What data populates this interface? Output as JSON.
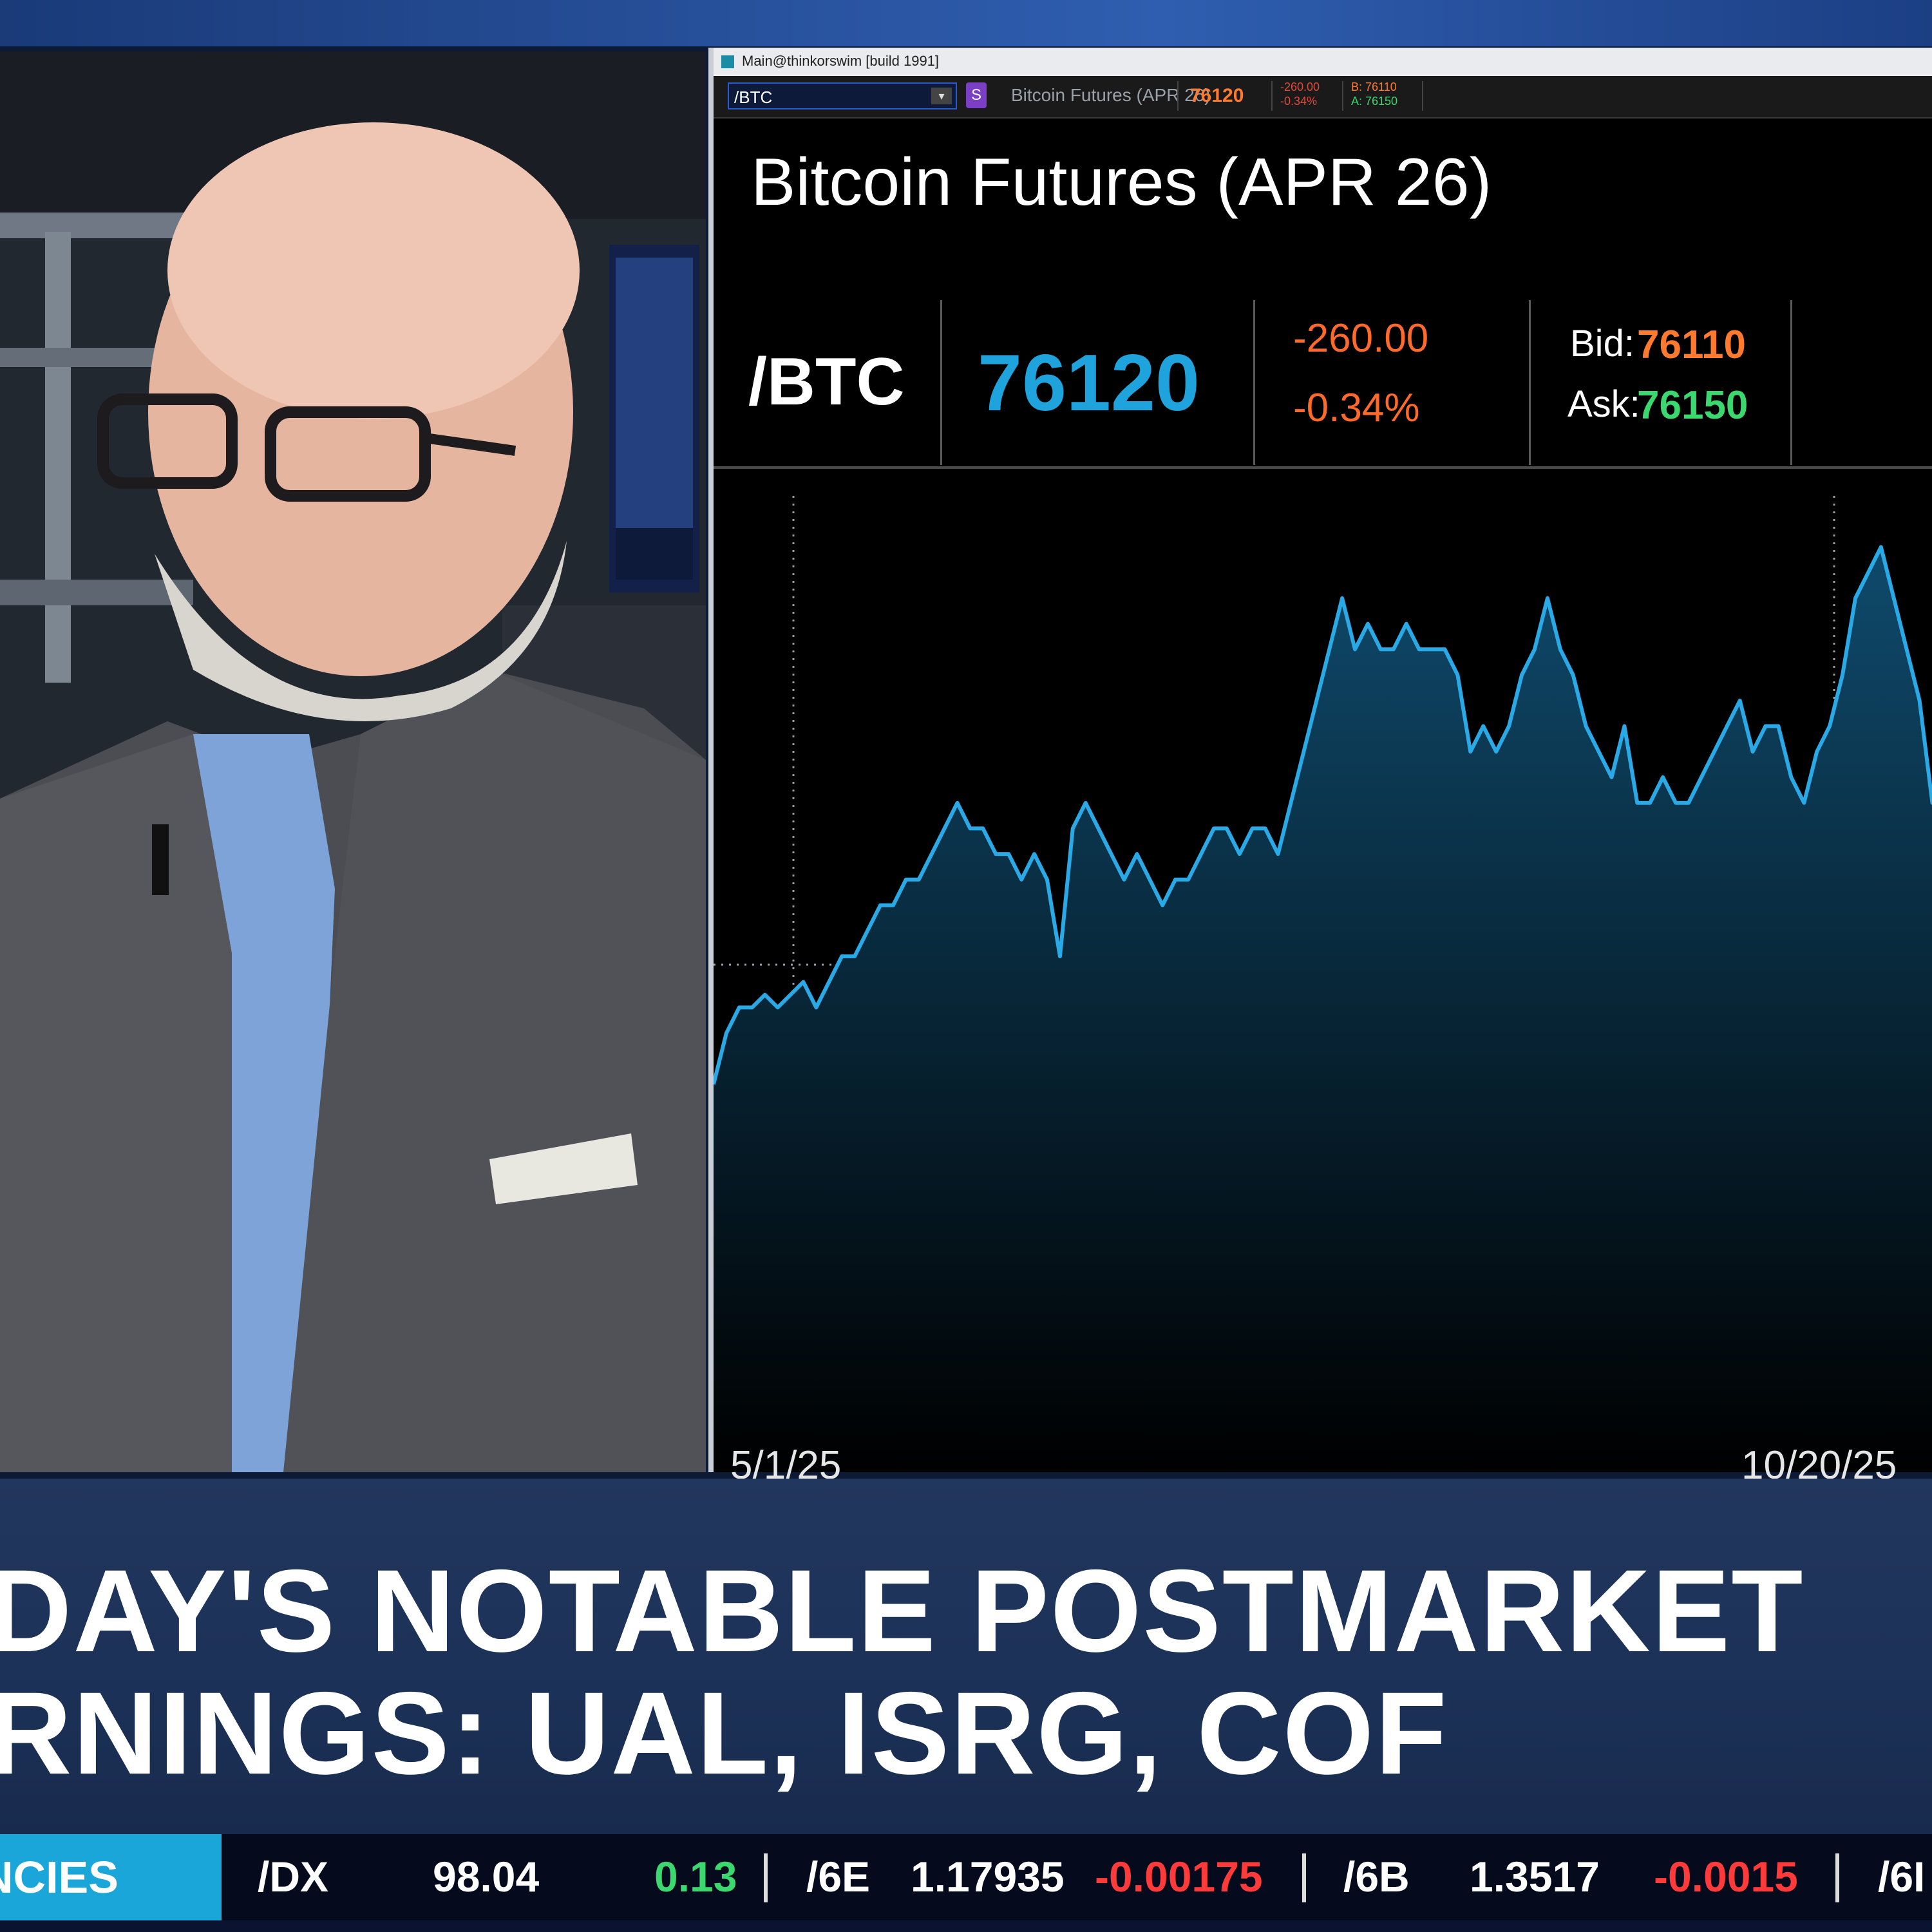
{
  "platform_window": {
    "title": "Main@thinkorswim [build 1991]",
    "symbol_input": "/BTC",
    "s_badge": "S",
    "description": "Bitcoin Futures (APR 26)",
    "last": "76120",
    "change_small": "-260.00",
    "pct_small": "-0.34%",
    "bid_small": "B: 76110",
    "ask_small": "A: 76150"
  },
  "chart_panel": {
    "title": "Bitcoin Futures (APR 26)",
    "symbol": "/BTC",
    "last": "76120",
    "change": "-260.00",
    "change_pct": "-0.34%",
    "bid_label": "Bid:",
    "bid": "76110",
    "ask_label": "Ask:",
    "ask": "76150",
    "colors": {
      "line": "#29a9e6",
      "fill_top": "#0f4a6c",
      "last": "#1fa3dc",
      "down": "#ff6a2a",
      "ask": "#3bd870"
    }
  },
  "chart_data": {
    "type": "area",
    "xlabel": "",
    "ylabel": "",
    "x_tick_labels": [
      "5/1/25",
      "10/20/25"
    ],
    "values": [
      93,
      95,
      96,
      96,
      96.5,
      96,
      96.5,
      97,
      96,
      97,
      98,
      98,
      99,
      100,
      100,
      101,
      101,
      102,
      103,
      104,
      103,
      103,
      102,
      102,
      101,
      102,
      101,
      98,
      103,
      104,
      103,
      102,
      101,
      102,
      101,
      100,
      101,
      101,
      102,
      103,
      103,
      102,
      103,
      103,
      102,
      104,
      106,
      108,
      110,
      112,
      110,
      111,
      110,
      110,
      111,
      110,
      110,
      110,
      109,
      106,
      107,
      106,
      107,
      109,
      110,
      112,
      110,
      109,
      107,
      106,
      105,
      107,
      104,
      104,
      105,
      104,
      104,
      105,
      106,
      107,
      108,
      106,
      107,
      107,
      105,
      104,
      106,
      107,
      109,
      112,
      113,
      114,
      112,
      110,
      108,
      104,
      106,
      104,
      105,
      102,
      104,
      102
    ],
    "ylim": [
      80,
      116
    ],
    "grid": {
      "vertical_dotted_at": [
        "5/1/25",
        "10/20/25"
      ],
      "horizontal_dotted": true
    }
  },
  "lower_third": {
    "line1": "DAY'S NOTABLE POSTMARKET",
    "line2": "RNINGS: UAL, ISRG, COF"
  },
  "ticker": {
    "category": "NCIES",
    "items": [
      {
        "sym": "/DX",
        "price": "98.04",
        "change": "0.13",
        "dir": "up"
      },
      {
        "sym": "/6E",
        "price": "1.17935",
        "change": "-0.00175",
        "dir": "down"
      },
      {
        "sym": "/6B",
        "price": "1.3517",
        "change": "-0.0015",
        "dir": "down"
      },
      {
        "sym": "/6I",
        "price": "",
        "change": "",
        "dir": ""
      }
    ]
  }
}
